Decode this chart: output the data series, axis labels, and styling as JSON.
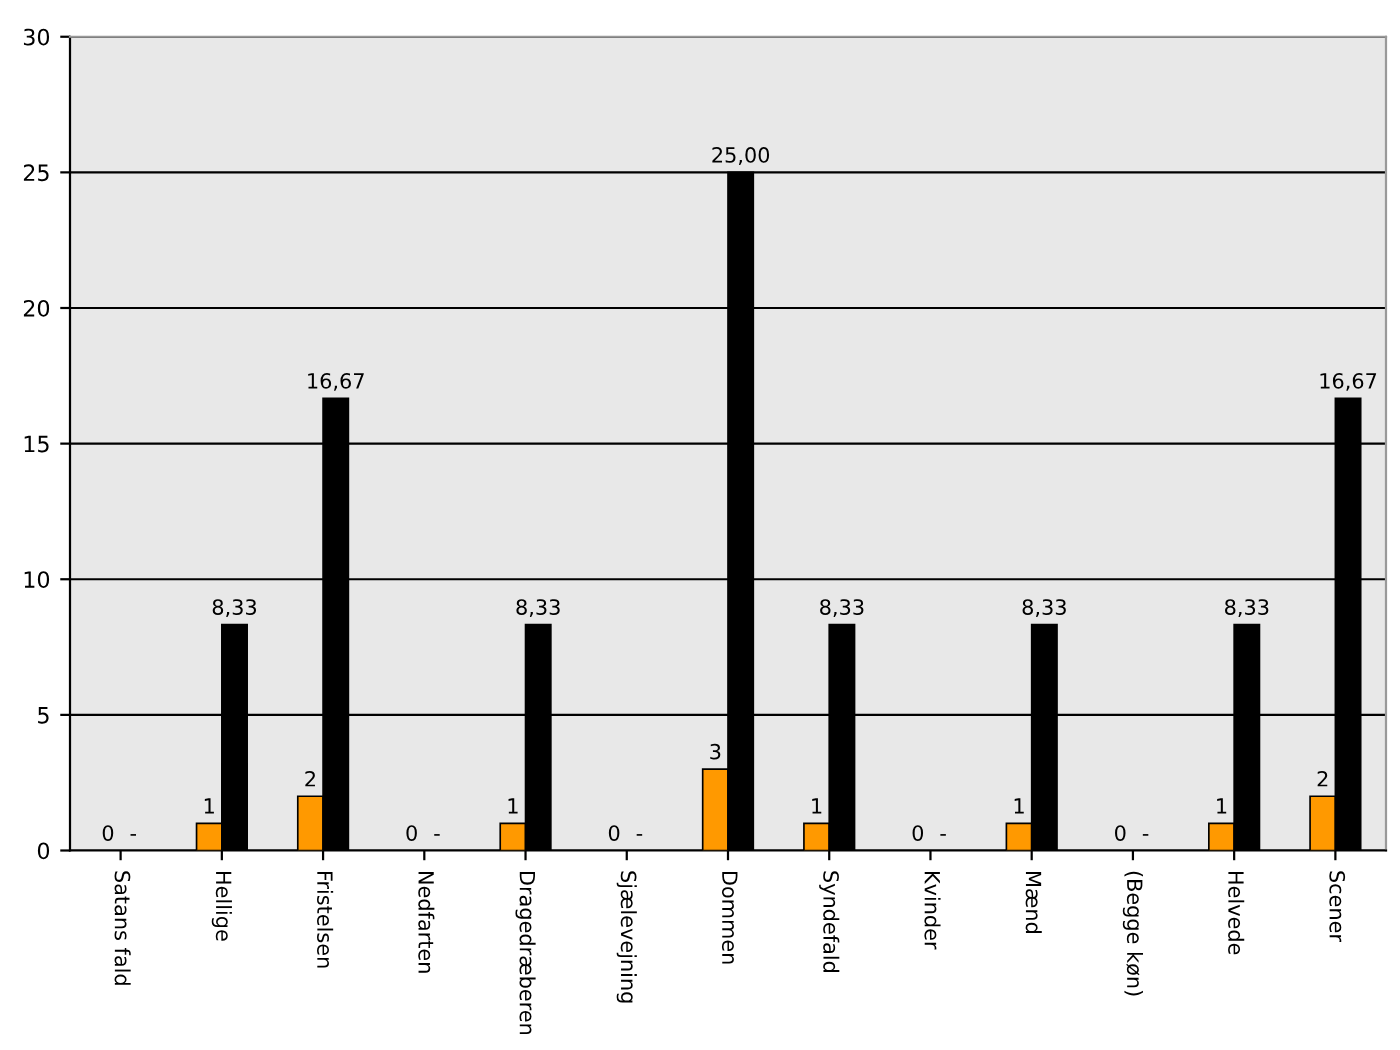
{
  "chart_data": {
    "type": "bar",
    "categories": [
      "Satans fald",
      "Hellige",
      "Fristelsen",
      "Nedfarten",
      "Dragedræberen",
      "Sjælevejning",
      "Dommen",
      "Syndefald",
      "Kvinder",
      "Mænd",
      "(Begge køn)",
      "Helvede",
      "Scener"
    ],
    "series": [
      {
        "color": "#ff9900",
        "values": [
          0,
          1,
          2,
          0,
          1,
          0,
          3,
          1,
          0,
          1,
          0,
          1,
          2
        ],
        "value_labels": [
          "0",
          "1",
          "2",
          "0",
          "1",
          "0",
          "3",
          "1",
          "0",
          "1",
          "0",
          "1",
          "2"
        ]
      },
      {
        "color": "#000000",
        "values": [
          0,
          8.33,
          16.67,
          0,
          8.33,
          0,
          25,
          8.33,
          0,
          8.33,
          0,
          8.33,
          16.67
        ],
        "value_labels": [
          "-",
          "8,33",
          "16,67",
          "-",
          "8,33",
          "-",
          "25,00",
          "8,33",
          "-",
          "8,33",
          "-",
          "8,33",
          "16,67"
        ]
      }
    ],
    "ylim": [
      0,
      30
    ],
    "yticks": [
      0,
      5,
      10,
      15,
      20,
      25,
      30
    ],
    "grid": "y",
    "legend": false
  }
}
